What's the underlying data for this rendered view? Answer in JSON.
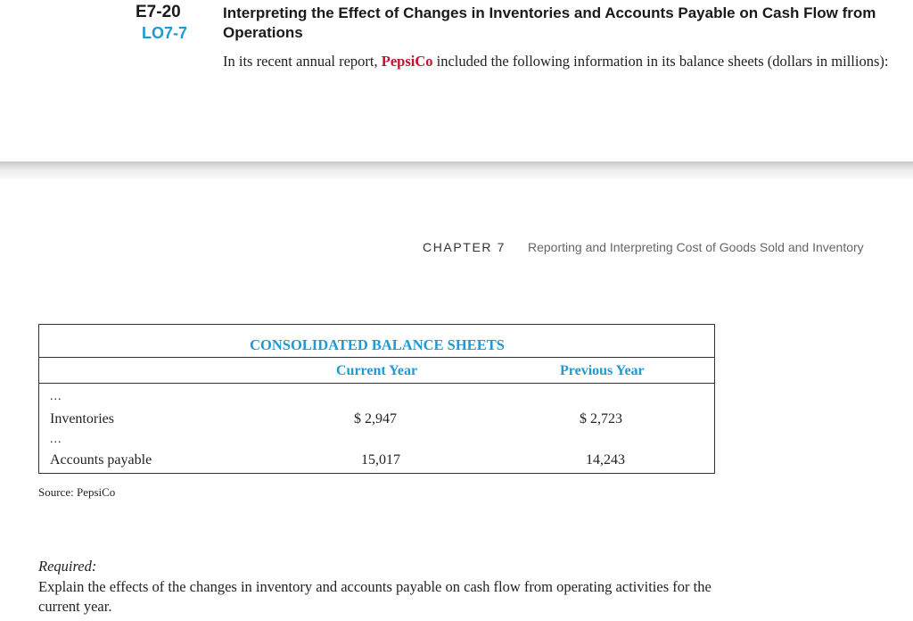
{
  "exercise": {
    "number": "E7-20",
    "learning_objective": "LO7-7",
    "title": "Interpreting the Effect of Changes in Inventories and Accounts Payable on Cash Flow from Operations",
    "intro_before": "In its recent annual report, ",
    "company": "PepsiCo",
    "intro_after": " included the following information in its balance sheets (dollars in millions):"
  },
  "running_header": {
    "chapter": "CHAPTER 7",
    "title": "Reporting and Interpreting Cost of Goods Sold and Inventory"
  },
  "table": {
    "title": "CONSOLIDATED BALANCE SHEETS",
    "columns": [
      "Current Year",
      "Previous Year"
    ],
    "ellipsis": "...",
    "rows": [
      {
        "label": "Inventories",
        "current": "$ 2,947",
        "previous": "$ 2,723"
      },
      {
        "label": "Accounts payable",
        "current": "15,017",
        "previous": "14,243"
      }
    ],
    "source": "Source: PepsiCo"
  },
  "required": {
    "label": "Required:",
    "text": "Explain the effects of the changes in inventory and accounts payable on cash flow from operating activities for the current year."
  },
  "colors": {
    "accent_blue": "#1b9ad6",
    "brand_red": "#c8102e"
  }
}
